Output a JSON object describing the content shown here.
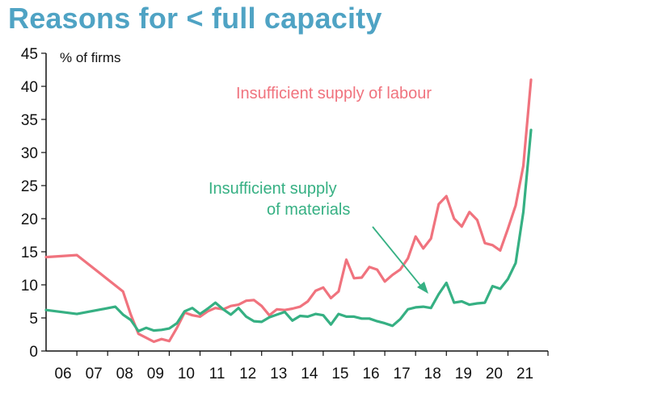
{
  "chart_data": {
    "type": "line",
    "title": "Reasons for < full capacity",
    "ylabel": "% of firms",
    "xlabel": "",
    "ylim": [
      0,
      45
    ],
    "xlim": [
      2005.5,
      2021.8
    ],
    "yticks": [
      0,
      5,
      10,
      15,
      20,
      25,
      30,
      35,
      40,
      45
    ],
    "xticks": [
      {
        "label": "06",
        "x": 2006
      },
      {
        "label": "07",
        "x": 2007
      },
      {
        "label": "08",
        "x": 2008
      },
      {
        "label": "09",
        "x": 2009
      },
      {
        "label": "10",
        "x": 2010
      },
      {
        "label": "11",
        "x": 2011
      },
      {
        "label": "12",
        "x": 2012
      },
      {
        "label": "13",
        "x": 2013
      },
      {
        "label": "14",
        "x": 2014
      },
      {
        "label": "15",
        "x": 2015
      },
      {
        "label": "16",
        "x": 2016
      },
      {
        "label": "17",
        "x": 2017
      },
      {
        "label": "18",
        "x": 2018
      },
      {
        "label": "19",
        "x": 2019
      },
      {
        "label": "20",
        "x": 2020
      },
      {
        "label": "21",
        "x": 2021
      }
    ],
    "grid": false,
    "series": [
      {
        "name": "Insufficient supply of labour",
        "color": "#f0737e",
        "points": [
          [
            2005.5,
            14.2
          ],
          [
            2006.5,
            14.5
          ],
          [
            2008.0,
            9.0
          ],
          [
            2008.25,
            5.5
          ],
          [
            2008.5,
            2.6
          ],
          [
            2008.75,
            2.0
          ],
          [
            2009.0,
            1.4
          ],
          [
            2009.25,
            1.8
          ],
          [
            2009.5,
            1.5
          ],
          [
            2009.75,
            3.5
          ],
          [
            2010.0,
            5.8
          ],
          [
            2010.25,
            5.4
          ],
          [
            2010.5,
            5.2
          ],
          [
            2010.75,
            6.0
          ],
          [
            2011.0,
            6.5
          ],
          [
            2011.25,
            6.3
          ],
          [
            2011.5,
            6.8
          ],
          [
            2011.75,
            7.0
          ],
          [
            2012.0,
            7.6
          ],
          [
            2012.25,
            7.7
          ],
          [
            2012.5,
            6.8
          ],
          [
            2012.75,
            5.4
          ],
          [
            2013.0,
            6.3
          ],
          [
            2013.25,
            6.2
          ],
          [
            2013.5,
            6.4
          ],
          [
            2013.75,
            6.7
          ],
          [
            2014.0,
            7.5
          ],
          [
            2014.25,
            9.1
          ],
          [
            2014.5,
            9.6
          ],
          [
            2014.75,
            8.0
          ],
          [
            2015.0,
            9.0
          ],
          [
            2015.25,
            13.8
          ],
          [
            2015.5,
            11.0
          ],
          [
            2015.75,
            11.1
          ],
          [
            2016.0,
            12.7
          ],
          [
            2016.25,
            12.3
          ],
          [
            2016.5,
            10.5
          ],
          [
            2016.75,
            11.5
          ],
          [
            2017.0,
            12.3
          ],
          [
            2017.25,
            14.0
          ],
          [
            2017.5,
            17.3
          ],
          [
            2017.75,
            15.5
          ],
          [
            2018.0,
            17.0
          ],
          [
            2018.25,
            22.2
          ],
          [
            2018.5,
            23.4
          ],
          [
            2018.75,
            20.0
          ],
          [
            2019.0,
            18.8
          ],
          [
            2019.25,
            21.0
          ],
          [
            2019.5,
            19.8
          ],
          [
            2019.75,
            16.3
          ],
          [
            2020.0,
            16.0
          ],
          [
            2020.25,
            15.2
          ],
          [
            2020.5,
            18.5
          ],
          [
            2020.75,
            22.0
          ],
          [
            2021.0,
            28.0
          ],
          [
            2021.25,
            41.0
          ]
        ]
      },
      {
        "name": "Insufficient supply of materials",
        "color": "#36b083",
        "points": [
          [
            2005.5,
            6.2
          ],
          [
            2006.5,
            5.6
          ],
          [
            2007.75,
            6.7
          ],
          [
            2008.0,
            5.5
          ],
          [
            2008.25,
            4.7
          ],
          [
            2008.5,
            3.0
          ],
          [
            2008.75,
            3.5
          ],
          [
            2009.0,
            3.1
          ],
          [
            2009.25,
            3.2
          ],
          [
            2009.5,
            3.4
          ],
          [
            2009.75,
            4.2
          ],
          [
            2010.0,
            6.0
          ],
          [
            2010.25,
            6.5
          ],
          [
            2010.5,
            5.6
          ],
          [
            2010.75,
            6.4
          ],
          [
            2011.0,
            7.3
          ],
          [
            2011.25,
            6.3
          ],
          [
            2011.5,
            5.5
          ],
          [
            2011.75,
            6.5
          ],
          [
            2012.0,
            5.2
          ],
          [
            2012.25,
            4.5
          ],
          [
            2012.5,
            4.4
          ],
          [
            2012.75,
            5.1
          ],
          [
            2013.0,
            5.5
          ],
          [
            2013.25,
            5.9
          ],
          [
            2013.5,
            4.6
          ],
          [
            2013.75,
            5.3
          ],
          [
            2014.0,
            5.2
          ],
          [
            2014.25,
            5.6
          ],
          [
            2014.5,
            5.4
          ],
          [
            2014.75,
            4.0
          ],
          [
            2015.0,
            5.6
          ],
          [
            2015.25,
            5.2
          ],
          [
            2015.5,
            5.2
          ],
          [
            2015.75,
            4.9
          ],
          [
            2016.0,
            4.9
          ],
          [
            2016.25,
            4.5
          ],
          [
            2016.5,
            4.2
          ],
          [
            2016.75,
            3.8
          ],
          [
            2017.0,
            4.8
          ],
          [
            2017.25,
            6.3
          ],
          [
            2017.5,
            6.6
          ],
          [
            2017.75,
            6.7
          ],
          [
            2018.0,
            6.5
          ],
          [
            2018.25,
            8.6
          ],
          [
            2018.5,
            10.3
          ],
          [
            2018.75,
            7.3
          ],
          [
            2019.0,
            7.5
          ],
          [
            2019.25,
            7.0
          ],
          [
            2019.5,
            7.2
          ],
          [
            2019.75,
            7.3
          ],
          [
            2020.0,
            9.8
          ],
          [
            2020.25,
            9.4
          ],
          [
            2020.5,
            10.9
          ],
          [
            2020.75,
            13.3
          ],
          [
            2021.0,
            21.0
          ],
          [
            2021.25,
            33.4
          ]
        ]
      }
    ],
    "annotations": [
      {
        "text": "Insufficient supply of labour",
        "color": "#f0737e"
      },
      {
        "text": "Insufficient supply",
        "color": "#36b083"
      },
      {
        "text": "of materials",
        "color": "#36b083"
      }
    ]
  }
}
